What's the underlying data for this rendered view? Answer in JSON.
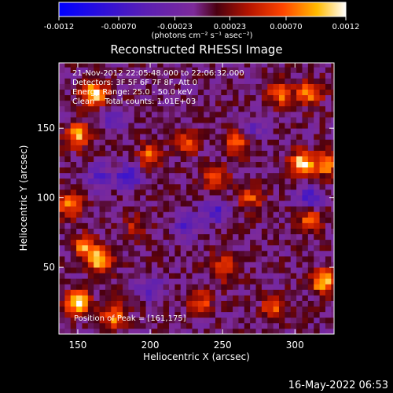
{
  "chart_data": {
    "type": "heatmap",
    "title": "Reconstructed RHESSI Image",
    "xlabel": "Heliocentric X (arcsec)",
    "ylabel": "Heliocentric Y (arcsec)",
    "xlim": [
      137,
      327
    ],
    "ylim": [
      2,
      197
    ],
    "x_ticks": [
      150,
      200,
      250,
      300
    ],
    "y_ticks": [
      50,
      100,
      150
    ],
    "colorbar": {
      "range": [
        -0.0012,
        0.0012
      ],
      "ticks": [
        -0.0012,
        -0.0007,
        -0.00023,
        0.00023,
        0.0007,
        0.0012
      ],
      "tick_labels": [
        "-0.0012",
        "-0.00070",
        "-0.00023",
        "0.00023",
        "0.00070",
        "0.0012"
      ],
      "unit_label": "(photons cm⁻² s⁻¹ asec⁻²)"
    },
    "annotations": [
      "21-Nov-2012 22:05:48.000 to 22:06:32.000",
      "Detectors: 3F 5F 6F 7F 8F, Att 0",
      "Energy Range: 25.0 - 50.0 keV",
      "Clean    Total counts: 1.01E+03"
    ],
    "peak_label": "Position of Peak = [161,175]",
    "peak_position": [
      161,
      175
    ],
    "hot_spots": [
      {
        "x": 161,
        "y": 175,
        "value": 0.0012
      },
      {
        "x": 150,
        "y": 145,
        "value": 0.0009
      },
      {
        "x": 145,
        "y": 95,
        "value": 0.0008
      },
      {
        "x": 155,
        "y": 65,
        "value": 0.0008
      },
      {
        "x": 165,
        "y": 55,
        "value": 0.0011
      },
      {
        "x": 150,
        "y": 25,
        "value": 0.0011
      },
      {
        "x": 175,
        "y": 15,
        "value": 0.0008
      },
      {
        "x": 200,
        "y": 130,
        "value": 0.0007
      },
      {
        "x": 225,
        "y": 140,
        "value": 0.0006
      },
      {
        "x": 245,
        "y": 115,
        "value": 0.0007
      },
      {
        "x": 260,
        "y": 140,
        "value": 0.0007
      },
      {
        "x": 270,
        "y": 100,
        "value": 0.0006
      },
      {
        "x": 290,
        "y": 175,
        "value": 0.0008
      },
      {
        "x": 310,
        "y": 175,
        "value": 0.0008
      },
      {
        "x": 305,
        "y": 125,
        "value": 0.0011
      },
      {
        "x": 322,
        "y": 125,
        "value": 0.0009
      },
      {
        "x": 310,
        "y": 85,
        "value": 0.0007
      },
      {
        "x": 320,
        "y": 40,
        "value": 0.0011
      },
      {
        "x": 250,
        "y": 50,
        "value": 0.0007
      },
      {
        "x": 235,
        "y": 25,
        "value": 0.0006
      },
      {
        "x": 285,
        "y": 20,
        "value": 0.0006
      },
      {
        "x": 190,
        "y": 80,
        "value": 0.0004
      }
    ],
    "cold_spots": [
      {
        "x": 185,
        "y": 115,
        "value": -0.0007
      },
      {
        "x": 165,
        "y": 115,
        "value": -0.0005
      },
      {
        "x": 245,
        "y": 90,
        "value": -0.0006
      },
      {
        "x": 225,
        "y": 80,
        "value": -0.0005
      },
      {
        "x": 200,
        "y": 35,
        "value": -0.0005
      },
      {
        "x": 310,
        "y": 100,
        "value": -0.0006
      },
      {
        "x": 270,
        "y": 150,
        "value": -0.0004
      },
      {
        "x": 175,
        "y": 155,
        "value": -0.0004
      }
    ]
  },
  "footer": {
    "date": "16-May-2022 06:53"
  }
}
